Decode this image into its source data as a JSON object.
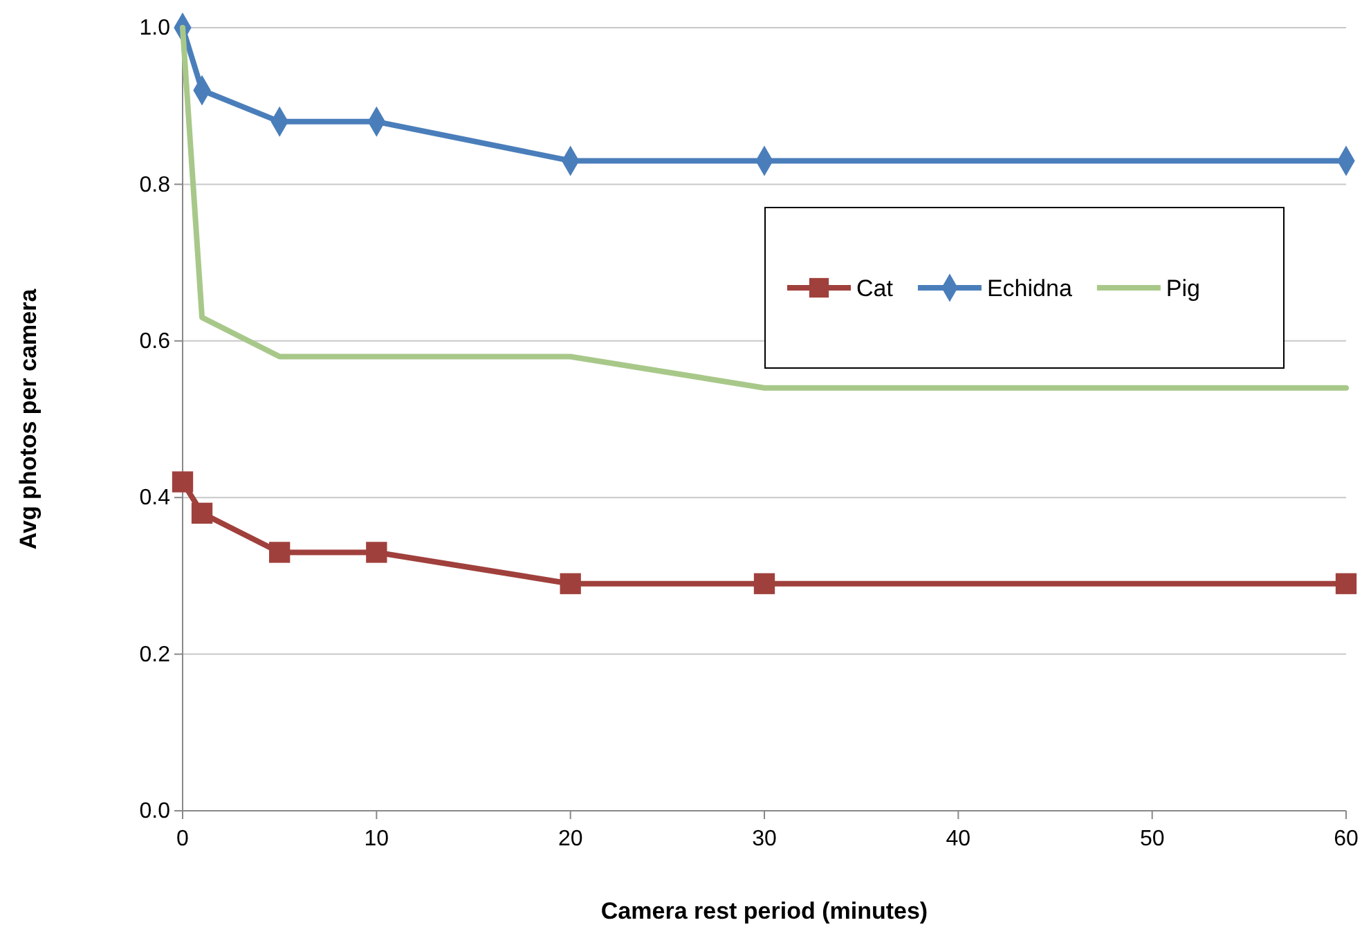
{
  "chart_data": {
    "type": "line",
    "xlabel": "Camera rest period (minutes)",
    "ylabel": "Avg photos per camera",
    "x": [
      0,
      1,
      5,
      10,
      20,
      30,
      60
    ],
    "series": [
      {
        "name": "Cat",
        "color": "#a0403c",
        "marker": "square",
        "values": [
          0.42,
          0.38,
          0.33,
          0.33,
          0.29,
          0.29,
          0.29
        ]
      },
      {
        "name": "Echidna",
        "color": "#4a7ebb",
        "marker": "diamond",
        "values": [
          1.0,
          0.92,
          0.88,
          0.88,
          0.83,
          0.83,
          0.83
        ]
      },
      {
        "name": "Pig",
        "color": "#a8c88a",
        "marker": "none",
        "values": [
          1.0,
          0.63,
          0.58,
          0.58,
          0.58,
          0.54,
          0.54
        ]
      }
    ],
    "xlim": [
      0,
      60
    ],
    "xticks": [
      0,
      10,
      20,
      30,
      40,
      50,
      60
    ],
    "ylim": [
      0,
      1
    ],
    "yticks": [
      {
        "value": 0,
        "label": "0.0"
      },
      {
        "value": 0.2,
        "label": "0.2"
      },
      {
        "value": 0.4,
        "label": "0.4"
      },
      {
        "value": 0.6,
        "label": "0.6"
      },
      {
        "value": 0.8,
        "label": "0.8"
      },
      {
        "value": 1,
        "label": "1.0"
      }
    ],
    "grid": "y",
    "legend": "top right"
  }
}
